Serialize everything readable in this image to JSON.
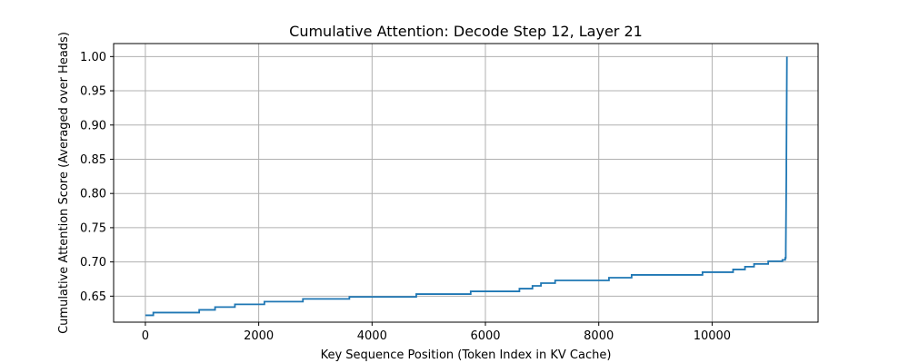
{
  "chart_data": {
    "type": "line",
    "title": "Cumulative Attention: Decode Step 12, Layer 21",
    "xlabel": "Key Sequence Position (Token Index in KV Cache)",
    "ylabel": "Cumulative Attention Score (Averaged over Heads)",
    "xlim": [
      -560,
      11870
    ],
    "ylim": [
      0.612,
      1.019
    ],
    "xticks": [
      0,
      2000,
      4000,
      6000,
      8000,
      10000
    ],
    "xtick_labels": [
      "0",
      "2000",
      "4000",
      "6000",
      "8000",
      "10000"
    ],
    "yticks": [
      0.65,
      0.7,
      0.75,
      0.8,
      0.85,
      0.9,
      0.95,
      1.0
    ],
    "ytick_labels": [
      "0.65",
      "0.70",
      "0.75",
      "0.80",
      "0.85",
      "0.90",
      "0.95",
      "1.00"
    ],
    "grid": true,
    "line_color": "#1f77b4",
    "series": [
      {
        "name": "",
        "x": [
          0,
          140,
          140,
          950,
          950,
          1230,
          1230,
          1580,
          1580,
          2100,
          2100,
          2780,
          2780,
          3600,
          3600,
          4780,
          4780,
          5740,
          5740,
          6600,
          6600,
          6830,
          6830,
          6980,
          6980,
          7230,
          7230,
          8180,
          8180,
          8580,
          8580,
          9830,
          9830,
          10370,
          10370,
          10580,
          10580,
          10740,
          10740,
          10990,
          10990,
          11240,
          11240,
          11290,
          11290,
          11300,
          11300,
          11310,
          11310,
          11320
        ],
        "y": [
          0.622,
          0.622,
          0.626,
          0.626,
          0.63,
          0.63,
          0.634,
          0.634,
          0.638,
          0.638,
          0.642,
          0.642,
          0.646,
          0.646,
          0.649,
          0.649,
          0.653,
          0.653,
          0.657,
          0.657,
          0.661,
          0.661,
          0.665,
          0.665,
          0.669,
          0.669,
          0.673,
          0.673,
          0.677,
          0.677,
          0.681,
          0.681,
          0.685,
          0.685,
          0.689,
          0.689,
          0.693,
          0.693,
          0.697,
          0.697,
          0.701,
          0.701,
          0.703,
          0.703,
          0.706,
          0.706,
          0.72,
          0.83,
          0.84,
          1.0
        ]
      }
    ]
  }
}
